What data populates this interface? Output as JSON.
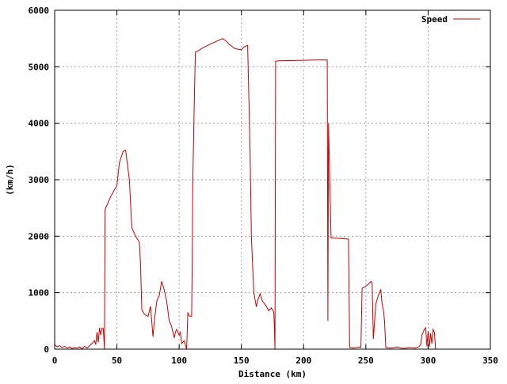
{
  "chart_data": {
    "type": "line",
    "title": "",
    "xlabel": "Distance (km)",
    "ylabel": "(km/h)",
    "xlim": [
      0,
      350
    ],
    "ylim": [
      0,
      6000
    ],
    "xticks": [
      0,
      50,
      100,
      150,
      200,
      250,
      300,
      350
    ],
    "yticks": [
      0,
      1000,
      2000,
      3000,
      4000,
      5000,
      6000
    ],
    "grid": true,
    "legend_position": "top-right",
    "series": [
      {
        "name": "Speed",
        "color": "#cc0000",
        "x": [
          0,
          2,
          4,
          6,
          8,
          10,
          12,
          14,
          16,
          18,
          20,
          22,
          24,
          26,
          28,
          30,
          32,
          33,
          34,
          35,
          36,
          37,
          38,
          39,
          40,
          40.5,
          41,
          45,
          50,
          52,
          55,
          57,
          60,
          62,
          65,
          68,
          69,
          70,
          72,
          75,
          77,
          79,
          80,
          82,
          84,
          86,
          88,
          90,
          92,
          94,
          96,
          97,
          98,
          100,
          101,
          102,
          104,
          106,
          107,
          108,
          110,
          110.5,
          111,
          112,
          113,
          115,
          120,
          130,
          135,
          138,
          140,
          145,
          150,
          152,
          155,
          157,
          158,
          160,
          162,
          163,
          165,
          167,
          170,
          172,
          174,
          175,
          176,
          176.5,
          177,
          177.5,
          178,
          180,
          190,
          200,
          210,
          219,
          219.5,
          220,
          221,
          222,
          230,
          235,
          236,
          237,
          240,
          245,
          246,
          247,
          249,
          252,
          254,
          255,
          256,
          258,
          260,
          262,
          263,
          264,
          265,
          266,
          270,
          275,
          280,
          285,
          290,
          293,
          294,
          295,
          297,
          298,
          299,
          300,
          301,
          302,
          303,
          304,
          305,
          306
        ],
        "y": [
          80,
          40,
          60,
          30,
          50,
          20,
          40,
          10,
          30,
          20,
          40,
          10,
          50,
          20,
          60,
          100,
          150,
          80,
          300,
          120,
          380,
          250,
          370,
          370,
          0,
          2460,
          2500,
          2700,
          2900,
          3300,
          3500,
          3520,
          3000,
          2150,
          2000,
          1900,
          1500,
          700,
          620,
          580,
          760,
          220,
          480,
          850,
          950,
          1200,
          1050,
          850,
          500,
          400,
          200,
          300,
          350,
          250,
          300,
          100,
          150,
          0,
          650,
          590,
          580,
          1500,
          3000,
          4200,
          5260,
          5280,
          5350,
          5450,
          5500,
          5450,
          5400,
          5320,
          5300,
          5350,
          5380,
          3500,
          2000,
          1000,
          750,
          850,
          980,
          850,
          760,
          680,
          730,
          700,
          650,
          350,
          0,
          5100,
          5100,
          5105,
          5110,
          5115,
          5120,
          5120,
          500,
          4000,
          3000,
          1970,
          1960,
          1950,
          1950,
          30,
          20,
          40,
          30,
          1080,
          1100,
          1150,
          1200,
          1180,
          180,
          800,
          950,
          1060,
          800,
          700,
          500,
          30,
          20,
          40,
          10,
          30,
          20,
          50,
          80,
          250,
          350,
          380,
          50,
          320,
          40,
          280,
          100,
          350,
          300,
          0
        ]
      }
    ]
  }
}
